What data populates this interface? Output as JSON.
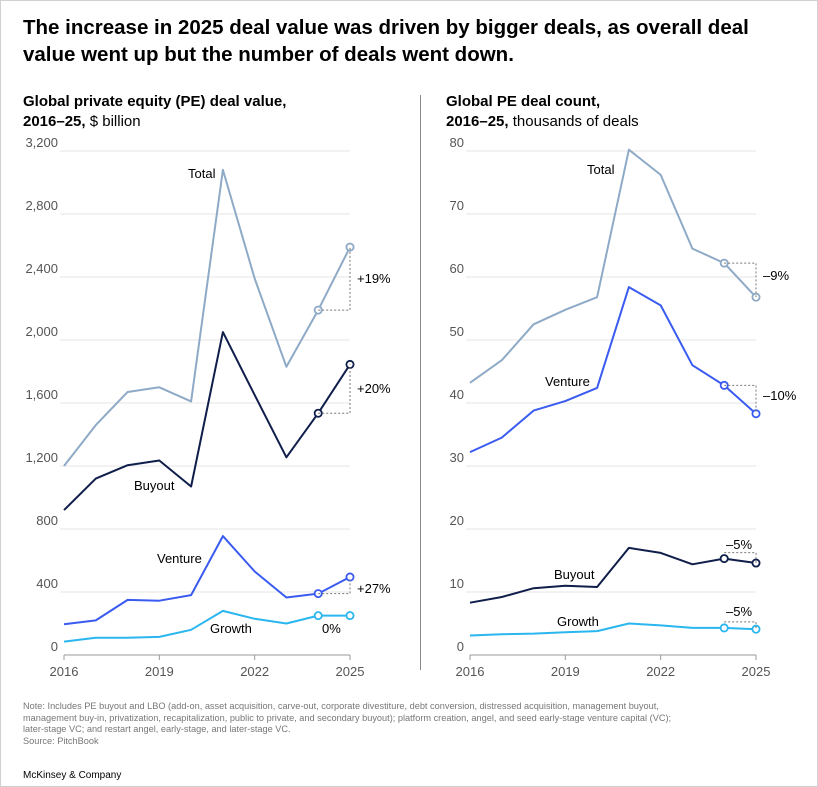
{
  "headline": "The increase in 2025 deal value was driven by bigger deals, as overall deal value went up but the number of deals went down.",
  "colors": {
    "total": "#8eaac6",
    "buyout": "#0f1e4a",
    "venture": "#3a5bf0",
    "growth": "#2ab6ee",
    "grid": "#e6e6e6",
    "axis": "#999999",
    "dashed": "#777777"
  },
  "chart_data": [
    {
      "type": "line",
      "title_bold": "Global private equity (PE) deal value,",
      "title_bold2": "2016–25,",
      "title_unit": " $ billion",
      "x": [
        2016,
        2017,
        2018,
        2019,
        2020,
        2021,
        2022,
        2023,
        2024,
        2025
      ],
      "x_ticks": [
        "2016",
        "2019",
        "2022",
        "2025"
      ],
      "y_ticks": [
        "0",
        "400",
        "800",
        "1,200",
        "1,600",
        "2,000",
        "2,400",
        "2,800",
        "3,200"
      ],
      "ylim": [
        0,
        3200
      ],
      "series": [
        {
          "name": "Total",
          "key": "total",
          "values": [
            1200,
            1460,
            1670,
            1700,
            1610,
            3080,
            2390,
            1830,
            2190,
            2590
          ],
          "change": "+19%"
        },
        {
          "name": "Buyout",
          "key": "buyout",
          "values": [
            920,
            1120,
            1205,
            1235,
            1070,
            2050,
            1650,
            1255,
            1535,
            1845
          ],
          "change": "+20%"
        },
        {
          "name": "Venture",
          "key": "venture",
          "values": [
            195,
            220,
            350,
            345,
            380,
            755,
            530,
            365,
            390,
            495
          ],
          "change": "+27%"
        },
        {
          "name": "Growth",
          "key": "growth",
          "values": [
            85,
            110,
            110,
            115,
            160,
            280,
            230,
            200,
            250,
            250
          ],
          "change": "0%"
        }
      ]
    },
    {
      "type": "line",
      "title_bold": "Global PE deal count,",
      "title_bold2": "2016–25,",
      "title_unit": " thousands of deals",
      "x": [
        2016,
        2017,
        2018,
        2019,
        2020,
        2021,
        2022,
        2023,
        2024,
        2025
      ],
      "x_ticks": [
        "2016",
        "2019",
        "2022",
        "2025"
      ],
      "y_ticks": [
        "0",
        "10",
        "20",
        "30",
        "40",
        "50",
        "60",
        "70",
        "80"
      ],
      "ylim": [
        0,
        80
      ],
      "series": [
        {
          "name": "Total",
          "key": "total",
          "values": [
            43.2,
            46.8,
            52.5,
            54.8,
            56.8,
            80.2,
            76.2,
            64.5,
            62.2,
            56.8
          ],
          "change": "–9%"
        },
        {
          "name": "Venture",
          "key": "venture",
          "values": [
            32.2,
            34.5,
            38.8,
            40.3,
            42.4,
            58.4,
            55.5,
            46.0,
            42.8,
            38.3
          ],
          "change": "–10%"
        },
        {
          "name": "Buyout",
          "key": "buyout",
          "values": [
            8.3,
            9.2,
            10.6,
            11.0,
            10.8,
            17.0,
            16.2,
            14.4,
            15.3,
            14.6
          ],
          "change": "–5%"
        },
        {
          "name": "Growth",
          "key": "growth",
          "values": [
            3.1,
            3.3,
            3.4,
            3.6,
            3.8,
            5.0,
            4.7,
            4.3,
            4.3,
            4.1
          ],
          "change": "–5%"
        }
      ]
    }
  ],
  "note": {
    "line1": "Note: Includes PE buyout and LBO (add-on, asset acquisition, carve-out, corporate divestiture, debt conversion, distressed acquisition, management buyout,",
    "line2": "management buy-in, privatization, recapitalization, public to private, and secondary buyout); platform creation, angel, and seed early-stage venture capital (VC);",
    "line3": "later-stage VC; and restart angel, early-stage, and later-stage VC.",
    "source": "Source: PitchBook"
  },
  "brand": "McKinsey & Company"
}
